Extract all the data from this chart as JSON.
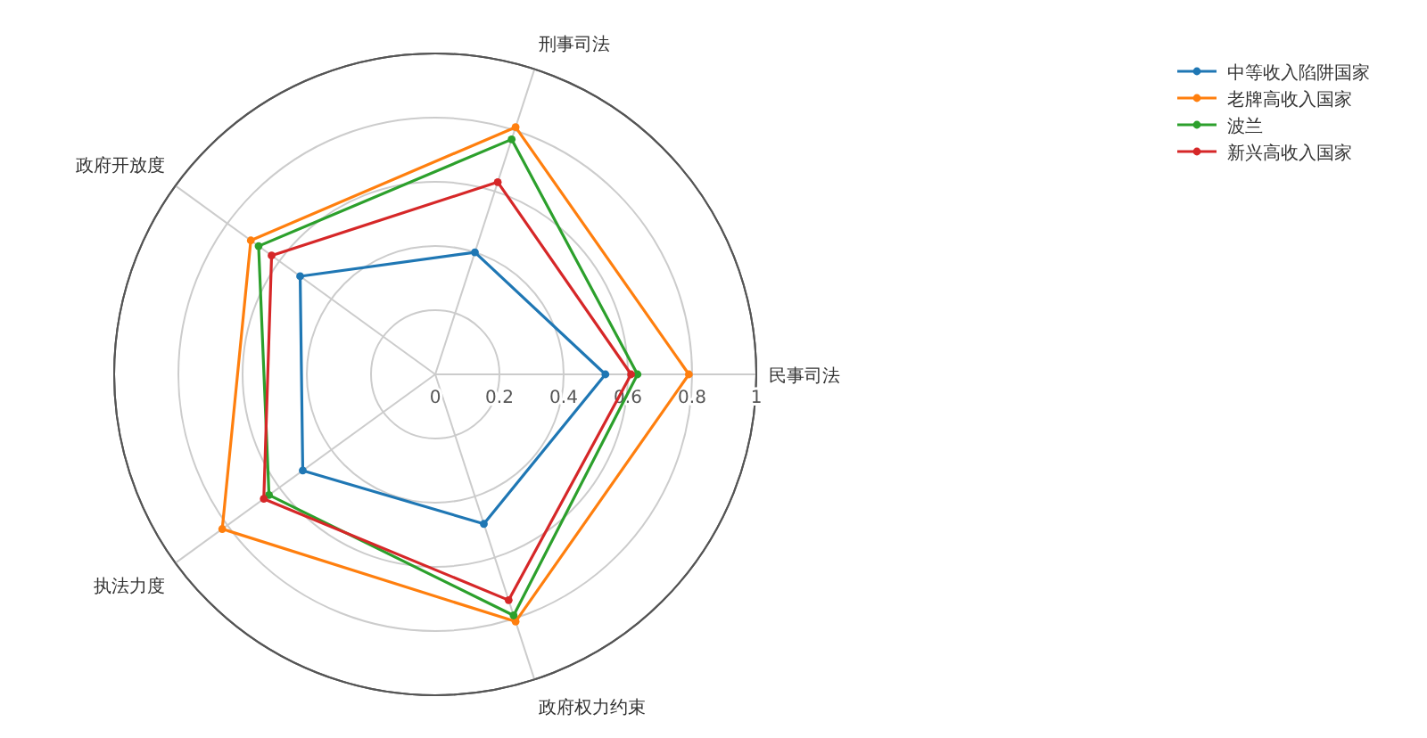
{
  "chart_data": {
    "type": "radar",
    "categories": [
      "刑事司法",
      "民事司法",
      "政府权力约束",
      "执法力度",
      "政府开放度"
    ],
    "series": [
      {
        "name": "中等收入陷阱国家",
        "color": "#1f77b4",
        "values": [
          0.4,
          0.53,
          0.49,
          0.51,
          0.52
        ]
      },
      {
        "name": "老牌高收入国家",
        "color": "#ff7f0e",
        "values": [
          0.81,
          0.79,
          0.81,
          0.82,
          0.71
        ]
      },
      {
        "name": "波兰",
        "color": "#2ca02c",
        "values": [
          0.77,
          0.63,
          0.79,
          0.64,
          0.68
        ]
      },
      {
        "name": "新兴高收入国家",
        "color": "#d62728",
        "values": [
          0.63,
          0.61,
          0.74,
          0.66,
          0.63
        ]
      }
    ],
    "ylim": [
      0,
      1
    ],
    "yticks": [
      0,
      0.2,
      0.4,
      0.6,
      0.8,
      1
    ],
    "grid": true,
    "legend": "top right",
    "marker": "circle",
    "line_style": "solid"
  }
}
